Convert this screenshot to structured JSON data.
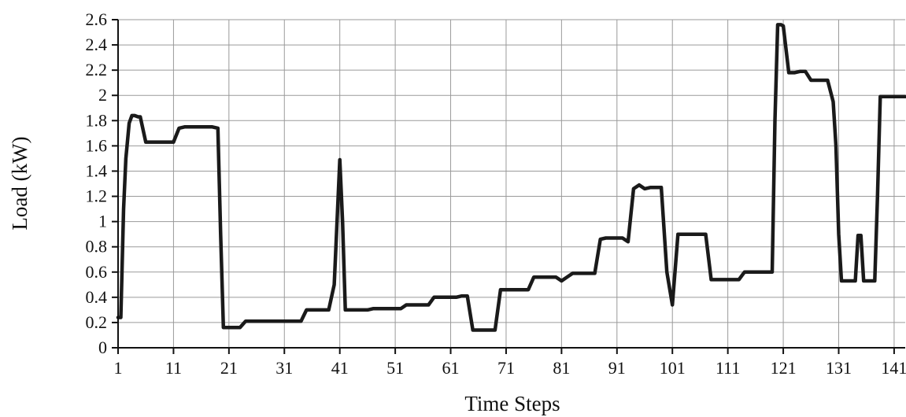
{
  "chart_data": {
    "type": "line",
    "title": "",
    "xlabel": "Time Steps",
    "ylabel": "Load (kW)",
    "xlim": [
      1,
      143
    ],
    "ylim": [
      0,
      2.6
    ],
    "x_ticks": [
      "1",
      "11",
      "21",
      "31",
      "41",
      "51",
      "61",
      "71",
      "81",
      "91",
      "101",
      "111",
      "121",
      "131",
      "141"
    ],
    "y_ticks": [
      "0",
      "0.2",
      "0.4",
      "0.6",
      "0.8",
      "1",
      "1.2",
      "1.4",
      "1.6",
      "1.8",
      "2",
      "2.2",
      "2.4",
      "2.6"
    ],
    "grid": true,
    "legend": "none",
    "line_color": "#1a1a1a",
    "grid_color": "#9a9a9a",
    "series": [
      {
        "x": [
          1,
          1.5,
          2,
          2.4,
          3,
          3.5,
          4,
          4.6,
          5,
          6,
          6.5,
          7,
          8,
          9,
          10,
          11,
          12,
          13,
          14,
          15,
          16,
          17,
          18,
          19,
          19.5,
          20,
          21,
          22,
          23,
          24,
          25,
          26,
          27,
          28,
          29,
          30,
          31,
          32,
          33,
          34,
          35,
          36,
          37,
          38,
          39,
          40,
          41,
          41.5,
          42,
          42.5,
          43,
          44,
          45,
          46,
          47,
          48,
          49,
          50,
          51,
          52,
          53,
          54,
          55,
          56,
          57,
          58,
          59,
          60,
          61,
          62,
          63,
          64,
          65,
          66,
          67,
          68,
          69,
          70,
          71,
          72,
          73,
          74,
          75,
          76,
          77,
          78,
          79,
          80,
          81,
          82,
          83,
          84,
          85,
          86,
          87,
          88,
          89,
          90,
          91,
          92,
          93,
          94,
          95,
          96,
          97,
          98,
          99,
          100,
          101,
          102,
          103,
          104,
          105,
          106,
          107,
          108,
          109,
          110,
          111,
          112,
          113,
          114,
          115,
          116,
          117,
          118,
          119,
          119.5,
          120,
          120.6,
          121,
          122,
          123,
          124,
          125,
          126,
          127,
          128,
          129,
          130,
          130.5,
          131,
          131.5,
          132,
          133,
          134,
          134.5,
          135,
          135.5,
          136,
          137,
          137.5,
          138,
          138.5,
          139,
          140,
          141,
          142,
          143
        ],
        "y": [
          0.24,
          0.24,
          1.1,
          1.5,
          1.78,
          1.84,
          1.84,
          1.83,
          1.83,
          1.63,
          1.63,
          1.63,
          1.63,
          1.63,
          1.63,
          1.63,
          1.74,
          1.75,
          1.75,
          1.75,
          1.75,
          1.75,
          1.75,
          1.74,
          0.9,
          0.16,
          0.16,
          0.16,
          0.16,
          0.21,
          0.21,
          0.21,
          0.21,
          0.21,
          0.21,
          0.21,
          0.21,
          0.21,
          0.21,
          0.21,
          0.3,
          0.3,
          0.3,
          0.3,
          0.3,
          0.5,
          1.49,
          1.0,
          0.3,
          0.3,
          0.3,
          0.3,
          0.3,
          0.3,
          0.31,
          0.31,
          0.31,
          0.31,
          0.31,
          0.31,
          0.34,
          0.34,
          0.34,
          0.34,
          0.34,
          0.4,
          0.4,
          0.4,
          0.4,
          0.4,
          0.41,
          0.41,
          0.14,
          0.14,
          0.14,
          0.14,
          0.14,
          0.46,
          0.46,
          0.46,
          0.46,
          0.46,
          0.46,
          0.56,
          0.56,
          0.56,
          0.56,
          0.56,
          0.53,
          0.56,
          0.59,
          0.59,
          0.59,
          0.59,
          0.59,
          0.86,
          0.87,
          0.87,
          0.87,
          0.87,
          0.84,
          1.26,
          1.29,
          1.26,
          1.27,
          1.27,
          1.27,
          0.6,
          0.34,
          0.9,
          0.9,
          0.9,
          0.9,
          0.9,
          0.9,
          0.54,
          0.54,
          0.54,
          0.54,
          0.54,
          0.54,
          0.6,
          0.6,
          0.6,
          0.6,
          0.6,
          0.6,
          1.8,
          2.56,
          2.56,
          2.55,
          2.18,
          2.18,
          2.19,
          2.19,
          2.12,
          2.12,
          2.12,
          2.12,
          1.95,
          1.6,
          0.9,
          0.53,
          0.53,
          0.53,
          0.53,
          0.89,
          0.89,
          0.53,
          0.53,
          0.53,
          0.53,
          1.2,
          1.99,
          1.99,
          1.99,
          1.99,
          1.99,
          1.99
        ]
      }
    ]
  }
}
